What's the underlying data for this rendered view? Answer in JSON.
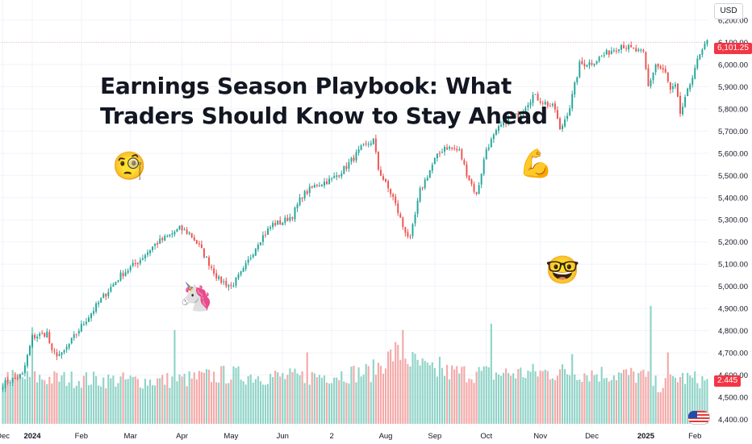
{
  "headline": {
    "line1": "Earnings Season Playbook: What",
    "line2": "Traders Should Know to Stay Ahead"
  },
  "emojis": {
    "monocle": "🧐",
    "flexed_biceps": "💪",
    "unicorn": "🦄",
    "nerd": "🤓"
  },
  "price_axis": {
    "currency": "USD",
    "last_price": "6,101.25",
    "volume_tag": "2.445"
  },
  "colors": {
    "up": "#26a69a",
    "down": "#ef5350",
    "up_volume": "#8fd3c7",
    "down_volume": "#f4a9a8",
    "grid": "#f0f3fa",
    "axis_text": "#131722",
    "price_tag": "#f23645"
  },
  "chart_data": {
    "type": "candlestick",
    "title": "",
    "xlabel": "",
    "ylabel": "",
    "ylim": [
      4380,
      6240
    ],
    "grid": true,
    "y_ticks": [
      "6,200.00",
      "6,100.00",
      "6,000.00",
      "5,900.00",
      "5,800.00",
      "5,700.00",
      "5,600.00",
      "5,500.00",
      "5,400.00",
      "5,300.00",
      "5,200.00",
      "5,100.00",
      "5,000.00",
      "4,900.00",
      "4,800.00",
      "4,700.00",
      "4,600.00",
      "4,500.00",
      "4,400.00"
    ],
    "x_ticks": [
      "Dec",
      "2024",
      "Feb",
      "Mar",
      "Apr",
      "May",
      "Jun",
      "2",
      "Aug",
      "Sep",
      "Oct",
      "Nov",
      "Dec",
      "2025",
      "Feb"
    ],
    "x_tick_index": [
      0,
      12,
      32,
      52,
      73,
      93,
      114,
      134,
      156,
      176,
      197,
      219,
      240,
      262,
      282
    ],
    "price_path": [
      [
        0,
        4560
      ],
      [
        8,
        4600
      ],
      [
        12,
        4770
      ],
      [
        18,
        4790
      ],
      [
        20,
        4700
      ],
      [
        24,
        4690
      ],
      [
        32,
        4820
      ],
      [
        40,
        4940
      ],
      [
        48,
        5050
      ],
      [
        55,
        5110
      ],
      [
        62,
        5190
      ],
      [
        68,
        5230
      ],
      [
        72,
        5260
      ],
      [
        76,
        5240
      ],
      [
        80,
        5180
      ],
      [
        88,
        5030
      ],
      [
        93,
        5000
      ],
      [
        98,
        5070
      ],
      [
        104,
        5200
      ],
      [
        110,
        5280
      ],
      [
        114,
        5290
      ],
      [
        118,
        5320
      ],
      [
        122,
        5410
      ],
      [
        128,
        5460
      ],
      [
        134,
        5480
      ],
      [
        140,
        5540
      ],
      [
        146,
        5620
      ],
      [
        151,
        5660
      ],
      [
        153,
        5530
      ],
      [
        156,
        5460
      ],
      [
        159,
        5400
      ],
      [
        163,
        5270
      ],
      [
        166,
        5210
      ],
      [
        170,
        5430
      ],
      [
        176,
        5570
      ],
      [
        180,
        5630
      ],
      [
        186,
        5610
      ],
      [
        189,
        5510
      ],
      [
        193,
        5410
      ],
      [
        197,
        5620
      ],
      [
        202,
        5710
      ],
      [
        206,
        5760
      ],
      [
        210,
        5770
      ],
      [
        216,
        5860
      ],
      [
        222,
        5820
      ],
      [
        225,
        5800
      ],
      [
        227,
        5700
      ],
      [
        231,
        5810
      ],
      [
        235,
        6000
      ],
      [
        240,
        6010
      ],
      [
        246,
        6050
      ],
      [
        252,
        6090
      ],
      [
        258,
        6060
      ],
      [
        261,
        6050
      ],
      [
        263,
        5900
      ],
      [
        266,
        6000
      ],
      [
        270,
        5960
      ],
      [
        272,
        5880
      ],
      [
        274,
        5900
      ],
      [
        276,
        5780
      ],
      [
        278,
        5840
      ],
      [
        282,
        5990
      ],
      [
        284,
        6040
      ],
      [
        287,
        6101
      ]
    ],
    "volume_path": [
      [
        0,
        0.52
      ],
      [
        30,
        0.5
      ],
      [
        60,
        0.48
      ],
      [
        75,
        0.5
      ],
      [
        90,
        0.55
      ],
      [
        120,
        0.52
      ],
      [
        150,
        0.58
      ],
      [
        160,
        0.8
      ],
      [
        175,
        0.58
      ],
      [
        200,
        0.56
      ],
      [
        230,
        0.58
      ],
      [
        260,
        0.54
      ],
      [
        268,
        0.42
      ],
      [
        275,
        0.52
      ],
      [
        287,
        0.48
      ]
    ],
    "volume_spikes": [
      [
        12,
        1.08
      ],
      [
        70,
        1.05
      ],
      [
        124,
        0.8
      ],
      [
        163,
        1.05
      ],
      [
        178,
        0.75
      ],
      [
        199,
        1.12
      ],
      [
        232,
        0.78
      ],
      [
        264,
        1.32
      ],
      [
        271,
        0.8
      ]
    ],
    "volume_ylim": [
      0,
      1.4
    ],
    "candle_count": 288
  }
}
